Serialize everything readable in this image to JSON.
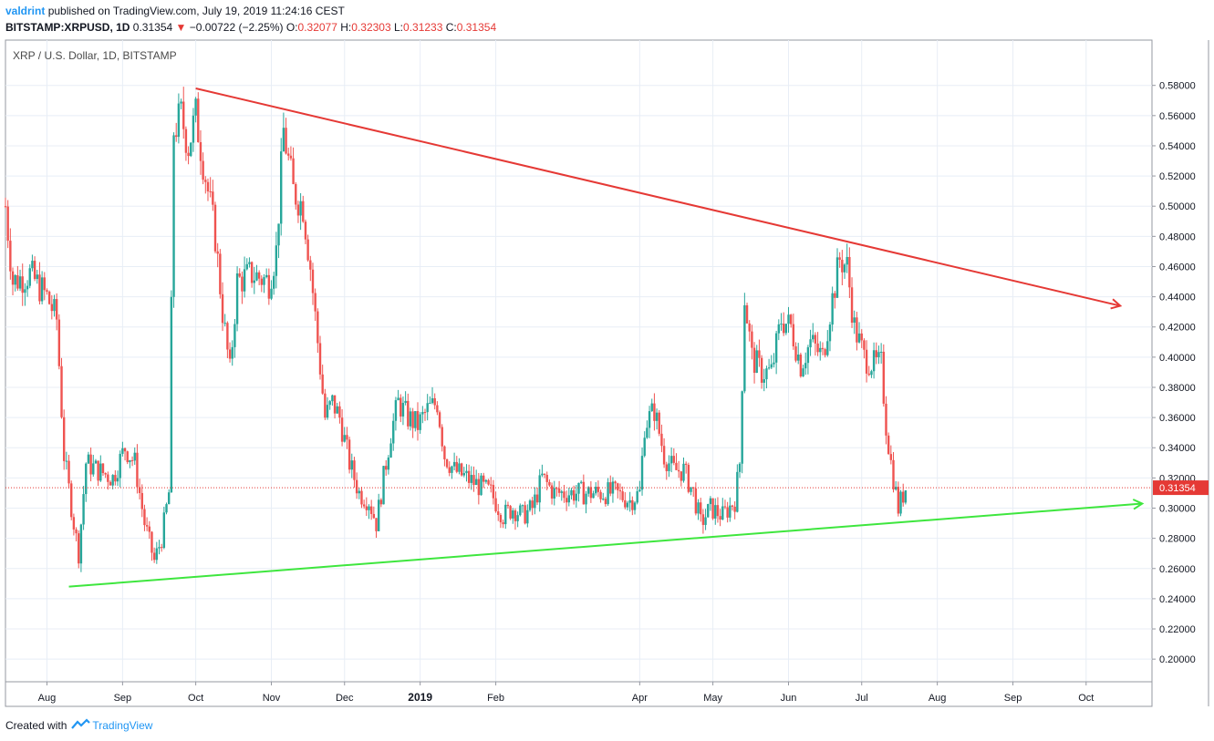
{
  "header": {
    "author": "valdrint",
    "published": "published on TradingView.com, July 19, 2019 11:24:16 CEST",
    "symbol": "BITSTAMP:XRPUSD, 1D",
    "last": "0.31354",
    "change_arrow": "▼",
    "change": "−0.00722 (−2.25%)",
    "o_label": "O:",
    "o": "0.32077",
    "h_label": "H:",
    "h": "0.32303",
    "l_label": "L:",
    "l": "0.31233",
    "c_label": "C:",
    "c": "0.31354"
  },
  "footer": {
    "created_with": "Created with",
    "brand": "TradingView",
    "logo_icon": "tradingview-cloud-icon"
  },
  "colors": {
    "up": "#26a69a",
    "down": "#ef5350",
    "resistance": "#e53935",
    "support": "#3ee63e",
    "price_line": "#e53935",
    "grid": "#e8eef6"
  },
  "chart_data": {
    "type": "candlestick",
    "title": "XRP / U.S. Dollar, 1D, BITSTAMP",
    "ylim": [
      0.185,
      0.61
    ],
    "y_ticks": [
      "0.58000",
      "0.56000",
      "0.54000",
      "0.52000",
      "0.50000",
      "0.48000",
      "0.46000",
      "0.44000",
      "0.42000",
      "0.40000",
      "0.38000",
      "0.36000",
      "0.34000",
      "0.32000",
      "0.30000",
      "0.28000",
      "0.26000",
      "0.24000",
      "0.22000",
      "0.20000"
    ],
    "x_ticks": [
      "Aug",
      "Sep",
      "Oct",
      "Nov",
      "Dec",
      "2019",
      "Feb",
      "Apr",
      "May",
      "Jun",
      "Jul",
      "Aug",
      "Sep",
      "Oct"
    ],
    "x_tick_dates": [
      "2018-08-01",
      "2018-09-01",
      "2018-10-01",
      "2018-11-01",
      "2018-12-01",
      "2019-01-01",
      "2019-02-01",
      "2019-04-01",
      "2019-05-01",
      "2019-06-01",
      "2019-07-01",
      "2019-08-01",
      "2019-09-01",
      "2019-10-01"
    ],
    "x_range": [
      "2018-07-15",
      "2019-10-28"
    ],
    "last_price": 0.31354,
    "last_price_label": "0.31354",
    "price_path": [
      [
        "2018-07-15",
        0.5
      ],
      [
        "2018-07-18",
        0.45
      ],
      [
        "2018-07-25",
        0.455
      ],
      [
        "2018-08-01",
        0.44
      ],
      [
        "2018-08-05",
        0.425
      ],
      [
        "2018-08-08",
        0.335
      ],
      [
        "2018-08-12",
        0.29
      ],
      [
        "2018-08-14",
        0.27
      ],
      [
        "2018-08-17",
        0.33
      ],
      [
        "2018-08-22",
        0.325
      ],
      [
        "2018-08-28",
        0.32
      ],
      [
        "2018-09-02",
        0.34
      ],
      [
        "2018-09-06",
        0.33
      ],
      [
        "2018-09-10",
        0.29
      ],
      [
        "2018-09-14",
        0.265
      ],
      [
        "2018-09-17",
        0.28
      ],
      [
        "2018-09-20",
        0.31
      ],
      [
        "2018-09-22",
        0.55
      ],
      [
        "2018-09-25",
        0.56
      ],
      [
        "2018-09-28",
        0.54
      ],
      [
        "2018-10-01",
        0.56
      ],
      [
        "2018-10-05",
        0.52
      ],
      [
        "2018-10-09",
        0.48
      ],
      [
        "2018-10-12",
        0.43
      ],
      [
        "2018-10-15",
        0.39
      ],
      [
        "2018-10-18",
        0.45
      ],
      [
        "2018-10-24",
        0.455
      ],
      [
        "2018-10-31",
        0.45
      ],
      [
        "2018-11-03",
        0.47
      ],
      [
        "2018-11-06",
        0.55
      ],
      [
        "2018-11-10",
        0.51
      ],
      [
        "2018-11-14",
        0.5
      ],
      [
        "2018-11-17",
        0.46
      ],
      [
        "2018-11-20",
        0.41
      ],
      [
        "2018-11-23",
        0.36
      ],
      [
        "2018-11-26",
        0.37
      ],
      [
        "2018-11-29",
        0.36
      ],
      [
        "2018-12-03",
        0.33
      ],
      [
        "2018-12-07",
        0.31
      ],
      [
        "2018-12-11",
        0.305
      ],
      [
        "2018-12-14",
        0.29
      ],
      [
        "2018-12-17",
        0.32
      ],
      [
        "2018-12-20",
        0.35
      ],
      [
        "2018-12-23",
        0.37
      ],
      [
        "2018-12-27",
        0.36
      ],
      [
        "2018-12-31",
        0.355
      ],
      [
        "2019-01-04",
        0.365
      ],
      [
        "2019-01-08",
        0.37
      ],
      [
        "2019-01-11",
        0.335
      ],
      [
        "2019-01-15",
        0.325
      ],
      [
        "2019-01-20",
        0.32
      ],
      [
        "2019-01-25",
        0.315
      ],
      [
        "2019-01-30",
        0.31
      ],
      [
        "2019-02-04",
        0.295
      ],
      [
        "2019-02-08",
        0.3
      ],
      [
        "2019-02-12",
        0.295
      ],
      [
        "2019-02-16",
        0.3
      ],
      [
        "2019-02-20",
        0.32
      ],
      [
        "2019-02-25",
        0.31
      ],
      [
        "2019-03-01",
        0.31
      ],
      [
        "2019-03-08",
        0.31
      ],
      [
        "2019-03-15",
        0.31
      ],
      [
        "2019-03-22",
        0.31
      ],
      [
        "2019-03-28",
        0.305
      ],
      [
        "2019-04-01",
        0.31
      ],
      [
        "2019-04-03",
        0.355
      ],
      [
        "2019-04-07",
        0.365
      ],
      [
        "2019-04-11",
        0.335
      ],
      [
        "2019-04-15",
        0.325
      ],
      [
        "2019-04-19",
        0.325
      ],
      [
        "2019-04-23",
        0.31
      ],
      [
        "2019-04-26",
        0.29
      ],
      [
        "2019-04-30",
        0.3
      ],
      [
        "2019-05-05",
        0.295
      ],
      [
        "2019-05-10",
        0.305
      ],
      [
        "2019-05-12",
        0.33
      ],
      [
        "2019-05-14",
        0.44
      ],
      [
        "2019-05-17",
        0.4
      ],
      [
        "2019-05-21",
        0.39
      ],
      [
        "2019-05-25",
        0.39
      ],
      [
        "2019-05-29",
        0.425
      ],
      [
        "2019-06-02",
        0.42
      ],
      [
        "2019-06-06",
        0.395
      ],
      [
        "2019-06-10",
        0.41
      ],
      [
        "2019-06-15",
        0.4
      ],
      [
        "2019-06-18",
        0.43
      ],
      [
        "2019-06-22",
        0.465
      ],
      [
        "2019-06-25",
        0.46
      ],
      [
        "2019-06-28",
        0.42
      ],
      [
        "2019-07-02",
        0.4
      ],
      [
        "2019-07-06",
        0.395
      ],
      [
        "2019-07-09",
        0.395
      ],
      [
        "2019-07-11",
        0.355
      ],
      [
        "2019-07-13",
        0.33
      ],
      [
        "2019-07-16",
        0.3
      ],
      [
        "2019-07-19",
        0.31354
      ]
    ],
    "trendlines": [
      {
        "color": "#e53935",
        "points": [
          [
            "2018-10-01",
            0.578
          ],
          [
            "2019-10-15",
            0.434
          ]
        ]
      },
      {
        "color": "#3ee63e",
        "points": [
          [
            "2018-08-10",
            0.248
          ],
          [
            "2019-10-24",
            0.303
          ]
        ]
      }
    ]
  }
}
